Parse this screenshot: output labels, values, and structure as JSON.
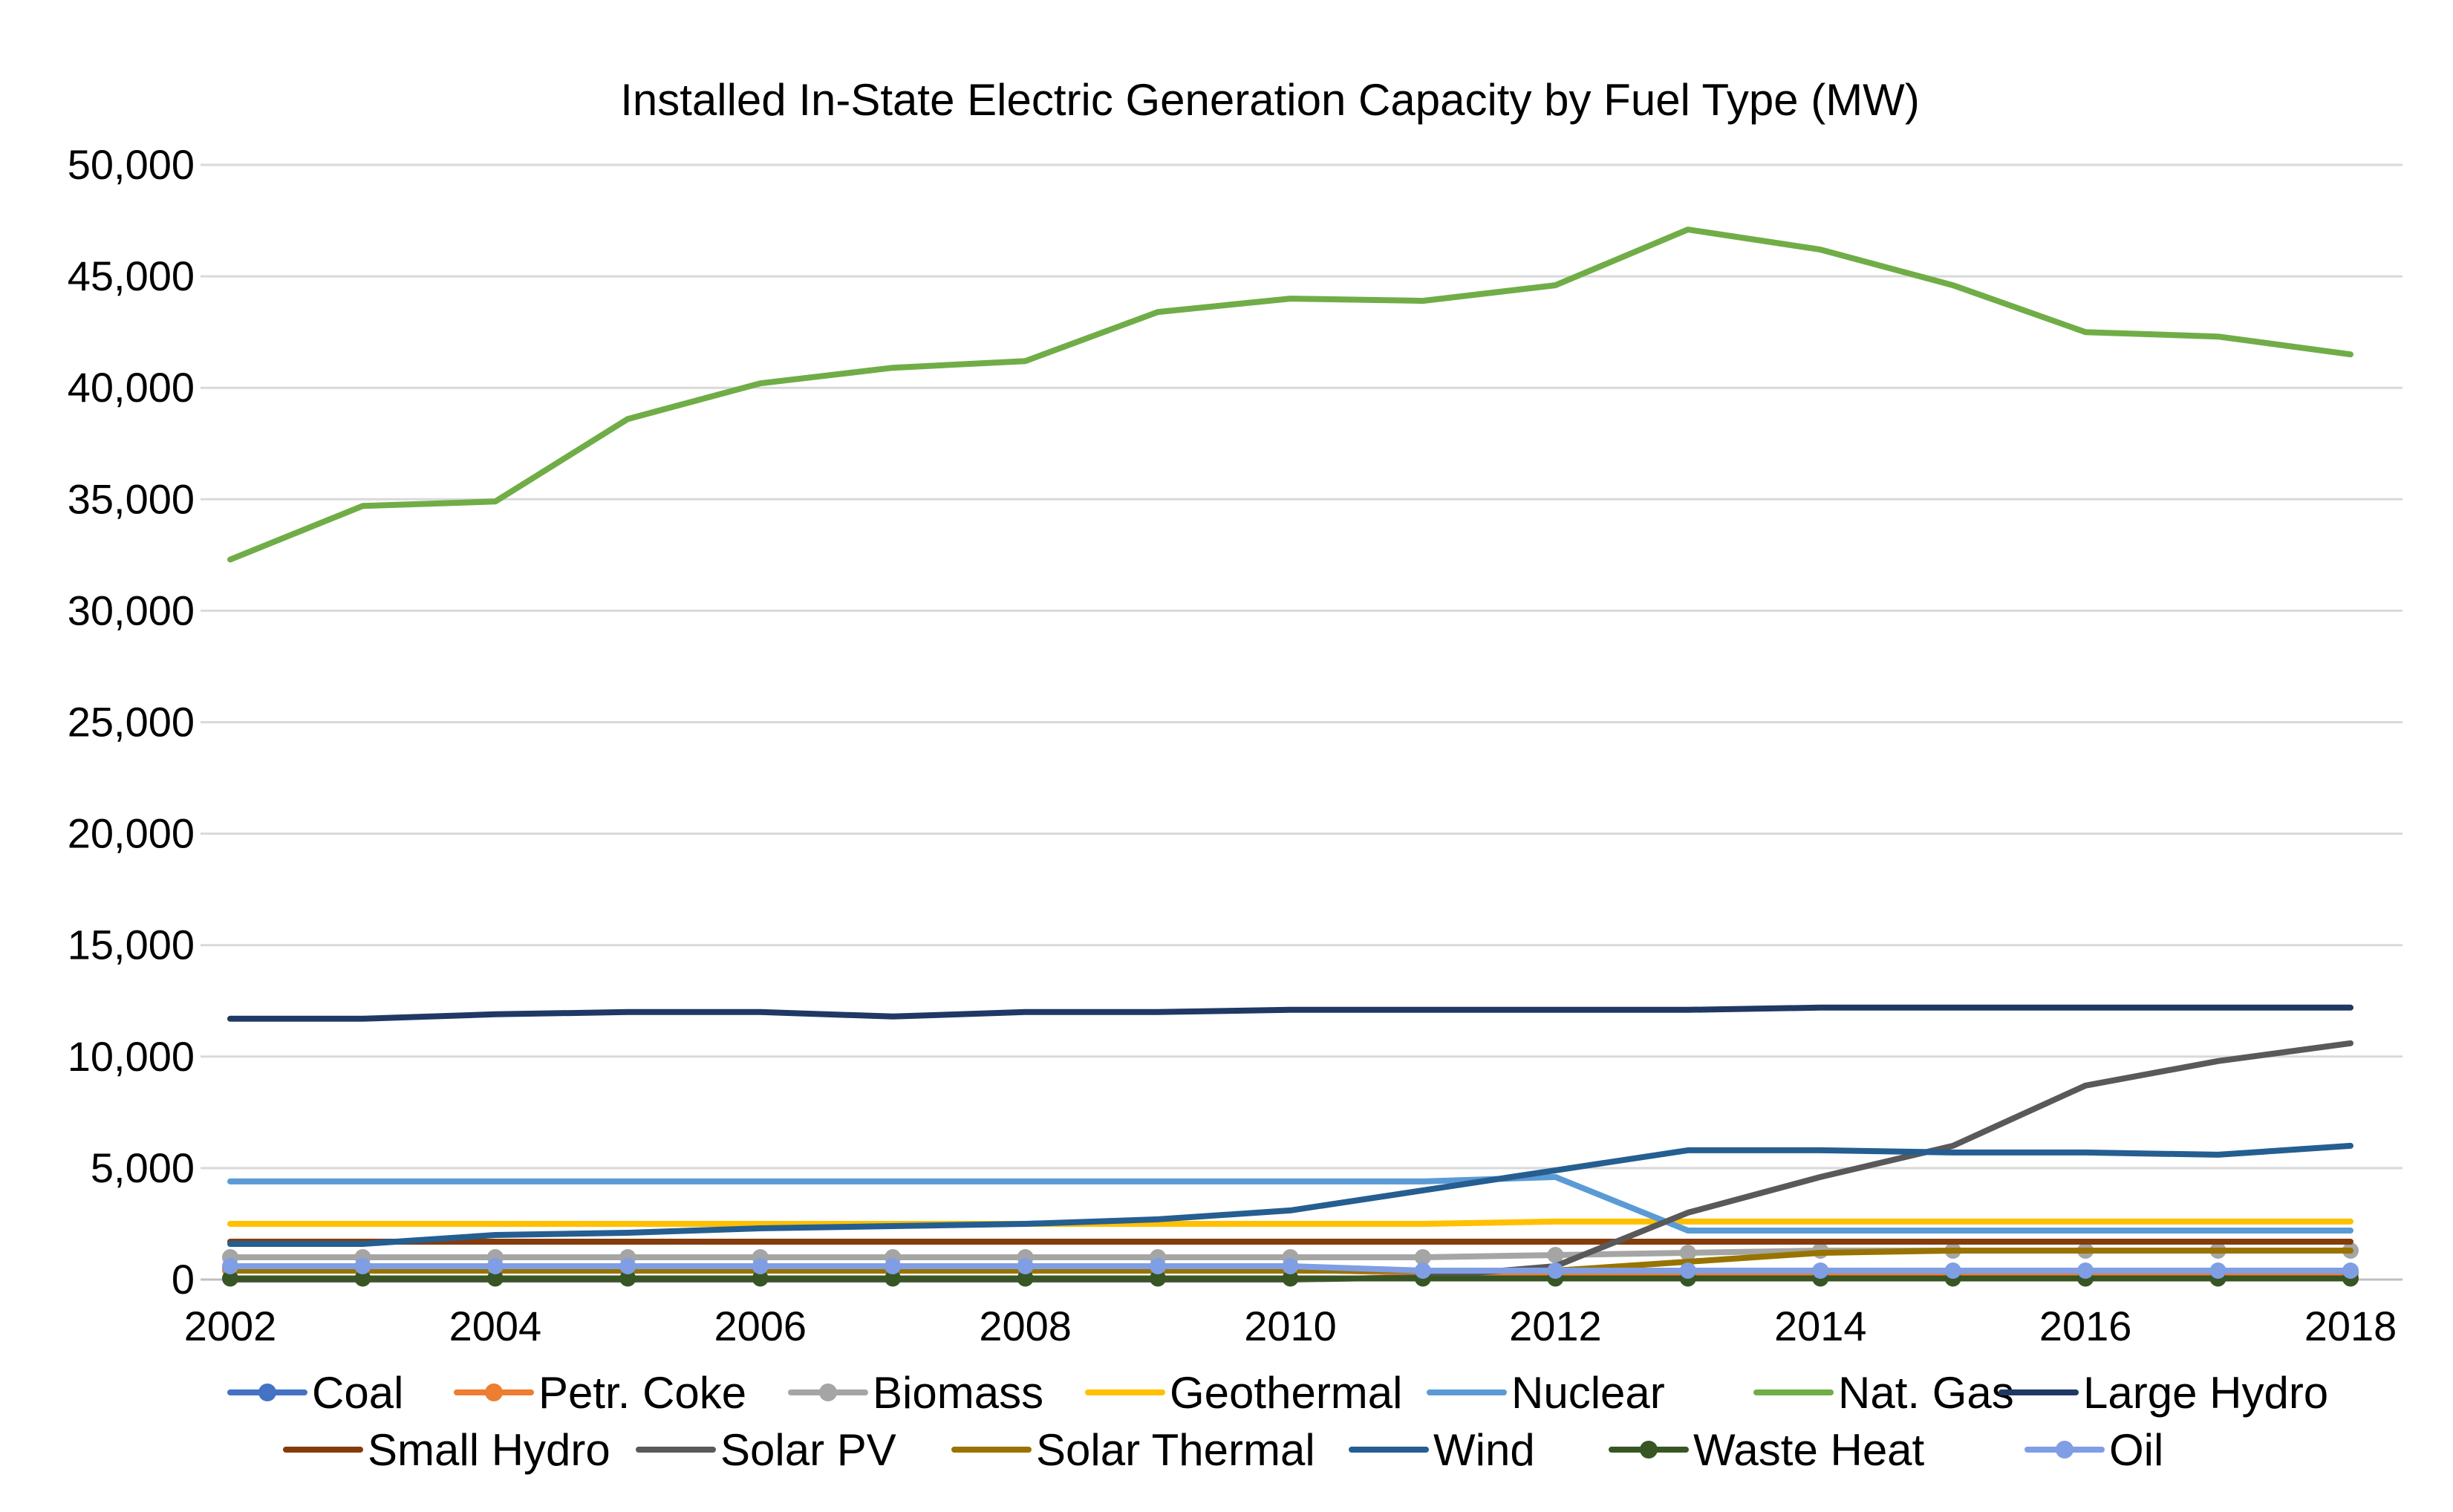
{
  "chart_data": {
    "type": "line",
    "title": "Installed In-State Electric Generation Capacity by Fuel Type (MW)",
    "xlabel": "",
    "ylabel": "",
    "ylim": [
      0,
      50000
    ],
    "y_ticks": [
      0,
      5000,
      10000,
      15000,
      20000,
      25000,
      30000,
      35000,
      40000,
      45000,
      50000
    ],
    "y_tick_labels": [
      "0",
      "5,000",
      "10,000",
      "15,000",
      "20,000",
      "25,000",
      "30,000",
      "35,000",
      "40,000",
      "45,000",
      "50,000"
    ],
    "x": [
      2002,
      2003,
      2004,
      2005,
      2006,
      2007,
      2008,
      2009,
      2010,
      2011,
      2012,
      2013,
      2014,
      2015,
      2016,
      2017,
      2018
    ],
    "x_tick_labels": [
      "2002",
      "2004",
      "2006",
      "2008",
      "2010",
      "2012",
      "2014",
      "2016",
      "2018"
    ],
    "x_tick_values": [
      2002,
      2004,
      2006,
      2008,
      2010,
      2012,
      2014,
      2016,
      2018
    ],
    "legend_position": "bottom",
    "series": [
      {
        "name": "Coal",
        "color": "#4472c4",
        "marker": true,
        "values": [
          450,
          450,
          450,
          450,
          450,
          450,
          450,
          450,
          450,
          300,
          300,
          300,
          300,
          300,
          300,
          300,
          300
        ]
      },
      {
        "name": "Petr. Coke",
        "color": "#ed7d31",
        "marker": true,
        "values": [
          450,
          450,
          450,
          450,
          450,
          450,
          450,
          450,
          450,
          300,
          300,
          300,
          300,
          300,
          300,
          300,
          300
        ]
      },
      {
        "name": "Biomass",
        "color": "#a5a5a5",
        "marker": true,
        "values": [
          1000,
          1000,
          1000,
          1000,
          1000,
          1000,
          1000,
          1000,
          1000,
          1000,
          1100,
          1200,
          1300,
          1300,
          1300,
          1300,
          1300
        ]
      },
      {
        "name": "Geothermal",
        "color": "#ffc000",
        "marker": false,
        "values": [
          2500,
          2500,
          2500,
          2500,
          2500,
          2500,
          2500,
          2500,
          2500,
          2500,
          2600,
          2600,
          2600,
          2600,
          2600,
          2600,
          2600
        ]
      },
      {
        "name": "Nuclear",
        "color": "#5b9bd5",
        "marker": false,
        "values": [
          4400,
          4400,
          4400,
          4400,
          4400,
          4400,
          4400,
          4400,
          4400,
          4400,
          4600,
          2200,
          2200,
          2200,
          2200,
          2200,
          2200
        ]
      },
      {
        "name": "Nat. Gas",
        "color": "#70ad47",
        "marker": false,
        "values": [
          32300,
          34700,
          34900,
          38600,
          40200,
          40900,
          41200,
          43400,
          44000,
          43900,
          44600,
          47100,
          46200,
          44600,
          42500,
          42300,
          41500
        ]
      },
      {
        "name": "Large Hydro",
        "color": "#203864",
        "marker": false,
        "values": [
          11700,
          11700,
          11900,
          12000,
          12000,
          11800,
          12000,
          12000,
          12100,
          12100,
          12100,
          12100,
          12200,
          12200,
          12200,
          12200,
          12200
        ]
      },
      {
        "name": "Small Hydro",
        "color": "#843c0c",
        "marker": false,
        "values": [
          1700,
          1700,
          1700,
          1700,
          1700,
          1700,
          1700,
          1700,
          1700,
          1700,
          1700,
          1700,
          1700,
          1700,
          1700,
          1700,
          1700
        ]
      },
      {
        "name": "Solar PV",
        "color": "#595959",
        "marker": false,
        "values": [
          0,
          0,
          0,
          0,
          0,
          0,
          0,
          0,
          0,
          100,
          600,
          3000,
          4600,
          6000,
          8700,
          9800,
          10600
        ]
      },
      {
        "name": "Solar Thermal",
        "color": "#997300",
        "marker": false,
        "values": [
          400,
          400,
          400,
          400,
          400,
          400,
          400,
          400,
          400,
          400,
          400,
          800,
          1200,
          1300,
          1300,
          1300,
          1300
        ]
      },
      {
        "name": "Wind",
        "color": "#255e91",
        "marker": false,
        "values": [
          1600,
          1600,
          2000,
          2100,
          2300,
          2400,
          2500,
          2700,
          3100,
          4000,
          4900,
          5800,
          5800,
          5700,
          5700,
          5600,
          6000
        ]
      },
      {
        "name": "Waste Heat",
        "color": "#375623",
        "marker": true,
        "values": [
          50,
          50,
          50,
          50,
          50,
          50,
          50,
          50,
          50,
          50,
          50,
          50,
          50,
          50,
          50,
          50,
          50
        ]
      },
      {
        "name": "Oil",
        "color": "#7f9ee4",
        "marker": true,
        "values": [
          600,
          600,
          600,
          600,
          600,
          600,
          600,
          600,
          600,
          400,
          400,
          400,
          400,
          400,
          400,
          400,
          400
        ]
      }
    ]
  }
}
